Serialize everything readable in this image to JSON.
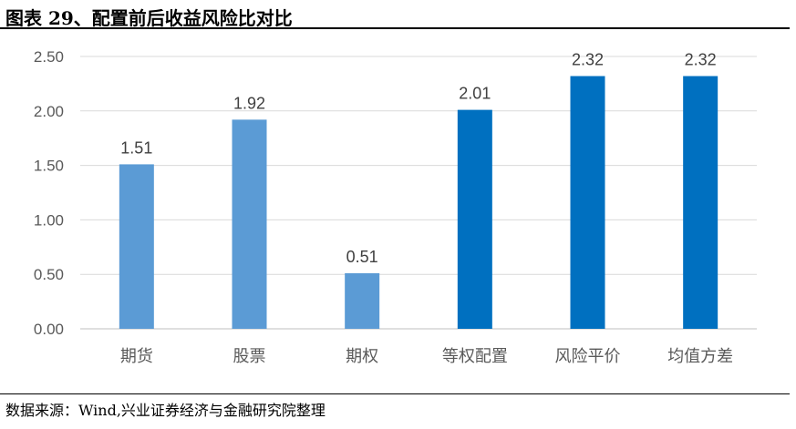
{
  "header": {
    "title": "图表 29、配置前后收益风险比对比"
  },
  "footer": {
    "source": "数据来源：Wind,兴业证券经济与金融研究院整理"
  },
  "chart_data": {
    "type": "bar",
    "title": "",
    "xlabel": "",
    "ylabel": "",
    "categories": [
      "期货",
      "股票",
      "期权",
      "等权配置",
      "风险平价",
      "均值方差"
    ],
    "values": [
      1.51,
      1.92,
      0.51,
      2.01,
      2.32,
      2.32
    ],
    "value_labels": [
      "1.51",
      "1.92",
      "0.51",
      "2.01",
      "2.32",
      "2.32"
    ],
    "ylim": [
      0,
      2.5
    ],
    "yticks": [
      "0.00",
      "0.50",
      "1.00",
      "1.50",
      "2.00",
      "2.50"
    ],
    "grid": true,
    "legend": "none",
    "colors": [
      "#5B9BD5",
      "#5B9BD5",
      "#5B9BD5",
      "#0070C0",
      "#0070C0",
      "#0070C0"
    ],
    "grid_color": "#D9D9D9"
  }
}
